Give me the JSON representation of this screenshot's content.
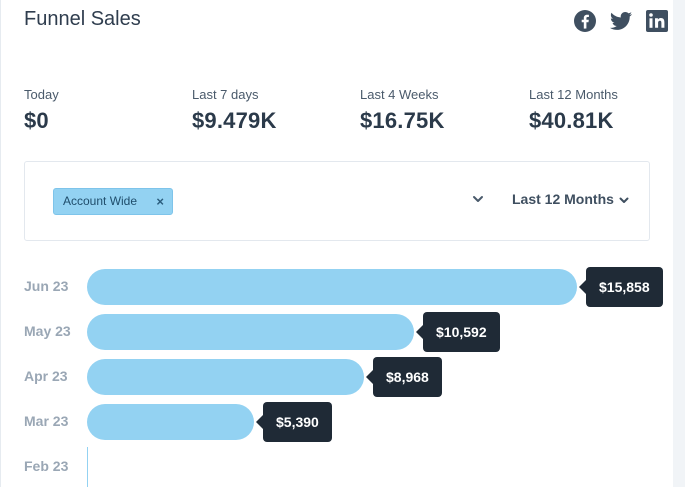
{
  "header": {
    "title": "Funnel Sales",
    "social": [
      "facebook-icon",
      "twitter-icon",
      "linkedin-icon"
    ]
  },
  "stats": [
    {
      "label": "Today",
      "value": "$0"
    },
    {
      "label": "Last 7 days",
      "value": "$9.479K"
    },
    {
      "label": "Last 4 Weeks",
      "value": "$16.75K"
    },
    {
      "label": "Last 12 Months",
      "value": "$40.81K"
    }
  ],
  "filters": {
    "chip_label": "Account Wide",
    "chip_remove": "×",
    "period_label": "Last 12 Months"
  },
  "colors": {
    "bar": "#93d2f2",
    "tooltip": "#1f2a36",
    "social": "#3f4f60"
  },
  "chart_data": {
    "type": "bar",
    "orientation": "horizontal",
    "categories": [
      "Jun 23",
      "May 23",
      "Apr 23",
      "Mar 23",
      "Feb 23"
    ],
    "values": [
      15858,
      10592,
      8968,
      5390,
      0
    ],
    "value_labels": [
      "$15,858",
      "$10,592",
      "$8,968",
      "$5,390",
      ""
    ]
  }
}
